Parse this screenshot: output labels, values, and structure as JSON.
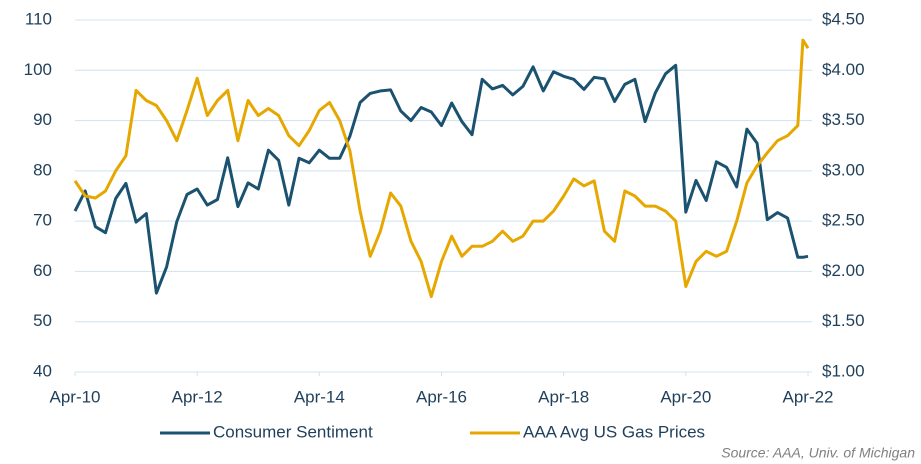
{
  "chart_data": {
    "type": "line",
    "x": [
      "2010-04",
      "2010-06",
      "2010-08",
      "2010-10",
      "2010-12",
      "2011-02",
      "2011-04",
      "2011-06",
      "2011-08",
      "2011-10",
      "2011-12",
      "2012-02",
      "2012-04",
      "2012-06",
      "2012-08",
      "2012-10",
      "2012-12",
      "2013-02",
      "2013-04",
      "2013-06",
      "2013-08",
      "2013-10",
      "2013-12",
      "2014-02",
      "2014-04",
      "2014-06",
      "2014-08",
      "2014-10",
      "2014-12",
      "2015-02",
      "2015-04",
      "2015-06",
      "2015-08",
      "2015-10",
      "2015-12",
      "2016-02",
      "2016-04",
      "2016-06",
      "2016-08",
      "2016-10",
      "2016-12",
      "2017-02",
      "2017-04",
      "2017-06",
      "2017-08",
      "2017-10",
      "2017-12",
      "2018-02",
      "2018-04",
      "2018-06",
      "2018-08",
      "2018-10",
      "2018-12",
      "2019-02",
      "2019-04",
      "2019-06",
      "2019-08",
      "2019-10",
      "2019-12",
      "2020-02",
      "2020-04",
      "2020-06",
      "2020-08",
      "2020-10",
      "2020-12",
      "2021-02",
      "2021-04",
      "2021-06",
      "2021-08",
      "2021-10",
      "2021-12",
      "2022-02",
      "2022-03",
      "2022-04"
    ],
    "series": [
      {
        "name": "Consumer Sentiment",
        "color": "#1b5270",
        "axis": "y",
        "values": [
          72,
          76,
          68.9,
          67.7,
          74.5,
          77.5,
          69.8,
          71.5,
          55.7,
          60.9,
          69.9,
          75.3,
          76.4,
          73.2,
          74.3,
          82.6,
          72.9,
          77.6,
          76.4,
          84.1,
          82.1,
          73.2,
          82.5,
          81.6,
          84.1,
          82.5,
          82.5,
          86.9,
          93.6,
          95.4,
          95.9,
          96.1,
          91.9,
          90.0,
          92.6,
          91.7,
          89.0,
          93.5,
          89.8,
          87.2,
          98.2,
          96.3,
          97.0,
          95.1,
          96.8,
          100.7,
          95.9,
          99.7,
          98.8,
          98.2,
          96.2,
          98.6,
          98.3,
          93.8,
          97.2,
          98.2,
          89.8,
          95.5,
          99.3,
          101.0,
          71.8,
          78.1,
          74.1,
          81.8,
          80.7,
          76.8,
          88.3,
          85.5,
          70.3,
          71.7,
          70.6,
          62.8,
          62.8,
          63
        ]
      },
      {
        "name": "AAA Avg US Gas Prices",
        "color": "#e6a800",
        "axis": "y2",
        "values": [
          2.9,
          2.75,
          2.73,
          2.8,
          3.0,
          3.15,
          3.8,
          3.7,
          3.65,
          3.5,
          3.3,
          3.6,
          3.92,
          3.55,
          3.7,
          3.8,
          3.3,
          3.7,
          3.55,
          3.62,
          3.55,
          3.35,
          3.25,
          3.4,
          3.6,
          3.68,
          3.5,
          3.2,
          2.6,
          2.15,
          2.4,
          2.78,
          2.65,
          2.3,
          2.1,
          1.75,
          2.1,
          2.35,
          2.15,
          2.25,
          2.25,
          2.3,
          2.4,
          2.3,
          2.35,
          2.5,
          2.5,
          2.6,
          2.75,
          2.92,
          2.85,
          2.9,
          2.4,
          2.3,
          2.8,
          2.75,
          2.65,
          2.65,
          2.6,
          2.5,
          1.85,
          2.1,
          2.2,
          2.15,
          2.2,
          2.5,
          2.88,
          3.05,
          3.18,
          3.3,
          3.35,
          3.45,
          4.3,
          4.22
        ]
      }
    ],
    "xlim": [
      "2010-04",
      "2022-04"
    ],
    "xticks": [
      {
        "value": "2010-04",
        "label": "Apr-10"
      },
      {
        "value": "2012-04",
        "label": "Apr-12"
      },
      {
        "value": "2014-04",
        "label": "Apr-14"
      },
      {
        "value": "2016-04",
        "label": "Apr-16"
      },
      {
        "value": "2018-04",
        "label": "Apr-18"
      },
      {
        "value": "2020-04",
        "label": "Apr-20"
      },
      {
        "value": "2022-04",
        "label": "Apr-22"
      }
    ],
    "ylim": [
      40,
      110
    ],
    "yticks": [
      40,
      50,
      60,
      70,
      80,
      90,
      100,
      110
    ],
    "y2lim": [
      1,
      4.5
    ],
    "y2ticks": [
      {
        "value": 1,
        "label": "$1.00"
      },
      {
        "value": 1.5,
        "label": "$1.50"
      },
      {
        "value": 2,
        "label": "$2.00"
      },
      {
        "value": 2.5,
        "label": "$2.50"
      },
      {
        "value": 3,
        "label": "$3.00"
      },
      {
        "value": 3.5,
        "label": "$3.50"
      },
      {
        "value": 4,
        "label": "$4.00"
      },
      {
        "value": 4.5,
        "label": "$4.50"
      }
    ],
    "grid": true,
    "legend": "bottom",
    "annotations": [
      "Source: AAA, Univ. of Michigan"
    ]
  }
}
